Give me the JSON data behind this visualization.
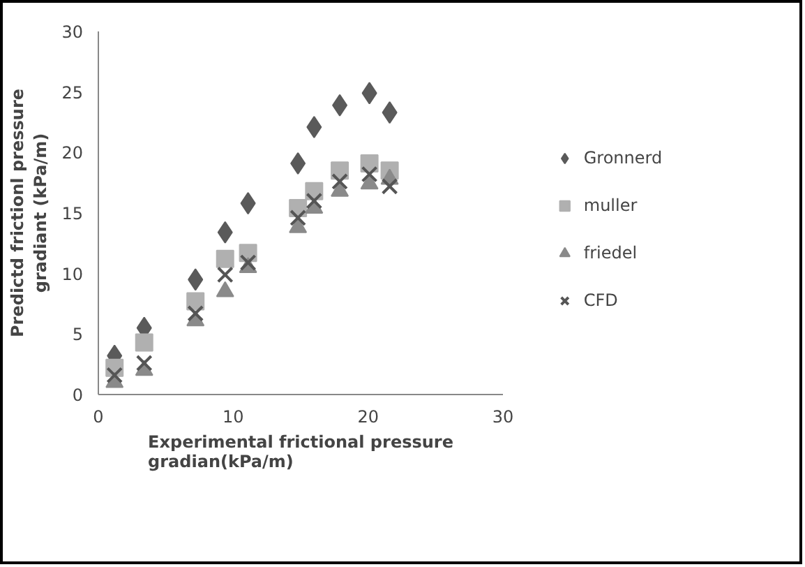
{
  "chart_data": {
    "type": "scatter",
    "xlabel": "Experimental frictional pressure\ngradian(kPa/m)",
    "ylabel": "Predictd frictionl pressure\ngradiant (kPa/m)",
    "x": [
      1.2,
      3.4,
      7.2,
      9.4,
      11.1,
      14.8,
      16.0,
      17.9,
      20.1,
      21.6
    ],
    "xlim": [
      0,
      30
    ],
    "xticks": [
      0,
      10,
      20,
      30
    ],
    "ylim": [
      0,
      30
    ],
    "yticks": [
      0,
      5,
      10,
      15,
      20,
      25,
      30
    ],
    "grid": false,
    "legend": "right",
    "series": [
      {
        "name": "Gronnerd",
        "color": "#5a5a5a",
        "marker": "diamond",
        "values": [
          3.2,
          5.5,
          9.5,
          13.4,
          15.8,
          19.1,
          22.1,
          23.9,
          24.9,
          23.3
        ]
      },
      {
        "name": "muller",
        "color": "#b0b0b0",
        "marker": "square",
        "values": [
          2.2,
          4.3,
          7.7,
          11.2,
          11.7,
          15.4,
          16.8,
          18.5,
          19.1,
          18.5
        ]
      },
      {
        "name": "friedel",
        "color": "#8a8a8a",
        "marker": "triangle",
        "values": [
          1.0,
          2.0,
          6.1,
          8.5,
          10.5,
          13.8,
          15.4,
          16.8,
          17.4,
          17.8
        ]
      },
      {
        "name": "CFD",
        "color": "#555555",
        "marker": "cross",
        "values": [
          1.6,
          2.6,
          6.7,
          9.9,
          10.9,
          14.6,
          16.0,
          17.6,
          18.2,
          17.2
        ]
      }
    ]
  }
}
